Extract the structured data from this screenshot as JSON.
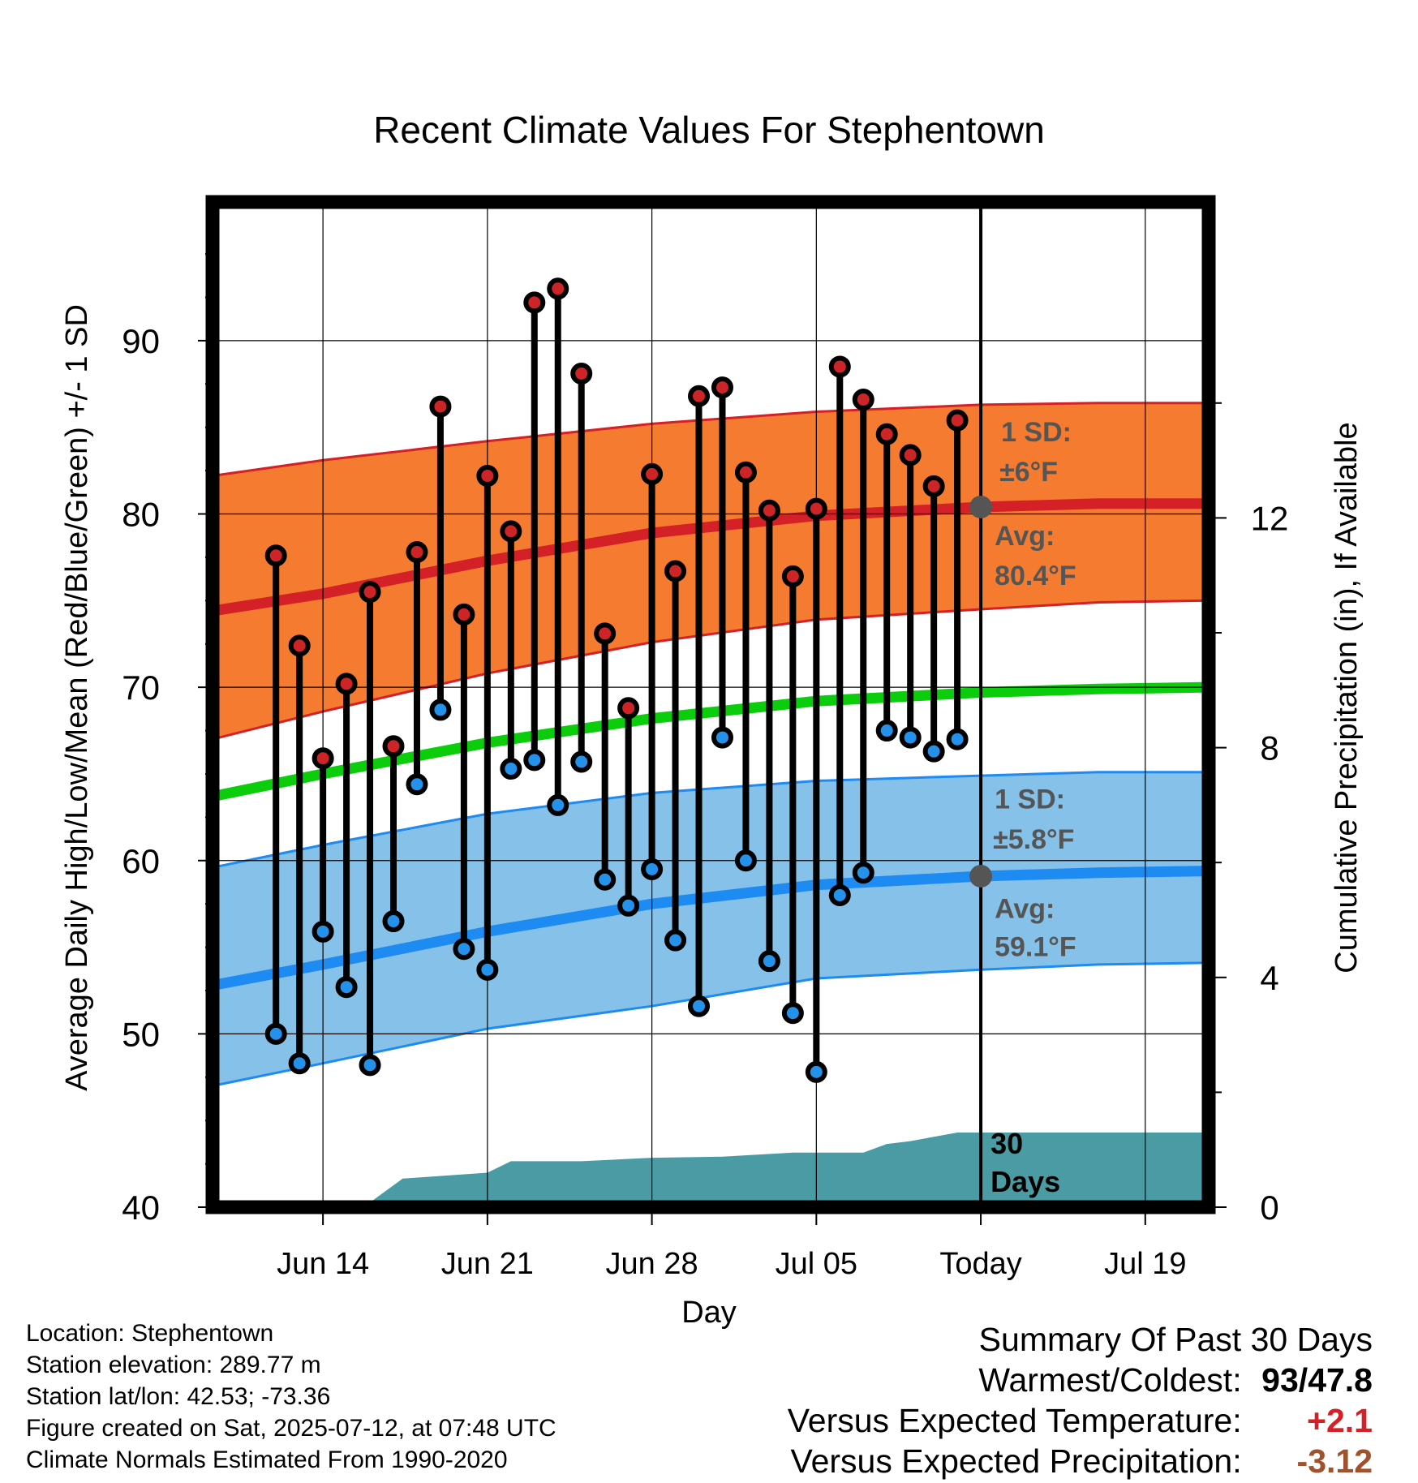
{
  "chart_data": {
    "type": "range-dot",
    "title": "Recent Climate Values For Stephentown",
    "xlabel": "Day",
    "ylabel": "Average Daily High/Low/Mean (Red/Blue/Green) +/- 1 SD",
    "y2label": "Cumulative Precipitation (in), If Available",
    "ylim": [
      40,
      98
    ],
    "yticks": [
      40,
      50,
      60,
      70,
      80,
      90
    ],
    "y2lim": [
      0,
      17.5
    ],
    "y2ticks": [
      0,
      4,
      8,
      12
    ],
    "xlim": [
      -32.7,
      9.7
    ],
    "xticks": [
      {
        "day": -28,
        "label": "Jun 14"
      },
      {
        "day": -21,
        "label": "Jun 21"
      },
      {
        "day": -14,
        "label": "Jun 28"
      },
      {
        "day": -7,
        "label": "Jul 05"
      },
      {
        "day": 0,
        "label": "Today"
      },
      {
        "day": 7,
        "label": "Jul 19"
      }
    ],
    "grid": true,
    "today_label": [
      "30",
      "Days"
    ],
    "daily": {
      "days": [
        -30,
        -29,
        -28,
        -27,
        -26,
        -25,
        -24,
        -23,
        -22,
        -21,
        -20,
        -19,
        -18,
        -17,
        -16,
        -15,
        -14,
        -13,
        -12,
        -11,
        -10,
        -9,
        -8,
        -7,
        -6,
        -5,
        -4,
        -3,
        -2,
        -1
      ],
      "highs": [
        77.6,
        72.4,
        65.9,
        70.2,
        75.5,
        66.6,
        77.8,
        86.2,
        74.2,
        82.2,
        79.0,
        92.2,
        93.0,
        88.1,
        73.1,
        68.8,
        82.3,
        76.7,
        86.8,
        87.3,
        82.4,
        80.2,
        76.4,
        80.3,
        88.5,
        86.6,
        84.6,
        83.4,
        81.6,
        85.4
      ],
      "lows": [
        50.0,
        48.3,
        55.9,
        52.7,
        48.2,
        56.5,
        64.4,
        68.7,
        54.9,
        53.7,
        65.3,
        65.8,
        63.2,
        65.7,
        58.9,
        57.4,
        59.5,
        55.4,
        51.6,
        67.1,
        60.0,
        54.2,
        51.2,
        47.8,
        58.0,
        59.3,
        67.5,
        67.1,
        66.3,
        67.0
      ]
    },
    "normals": {
      "days": [
        -32.7,
        -28,
        -21,
        -14,
        -7,
        0,
        5,
        9.7
      ],
      "high_mean": [
        74.4,
        75.4,
        77.3,
        78.9,
        79.9,
        80.4,
        80.6,
        80.6
      ],
      "high_upper": [
        82.2,
        83.1,
        84.2,
        85.2,
        85.9,
        86.3,
        86.4,
        86.4
      ],
      "high_lower": [
        67.0,
        68.6,
        70.8,
        72.6,
        73.9,
        74.5,
        74.9,
        75.0
      ],
      "mean": [
        63.7,
        65.0,
        66.8,
        68.2,
        69.2,
        69.7,
        69.9,
        70.0
      ],
      "low_mean": [
        52.8,
        54.0,
        55.9,
        57.5,
        58.6,
        59.1,
        59.3,
        59.4
      ],
      "low_upper": [
        59.6,
        60.9,
        62.7,
        63.9,
        64.6,
        64.9,
        65.1,
        65.1
      ],
      "low_lower": [
        47.0,
        48.3,
        50.3,
        51.6,
        53.2,
        53.7,
        54.0,
        54.1
      ]
    },
    "precip": {
      "days": [
        -32.7,
        -28.1,
        -28,
        -26,
        -24.6,
        -24.5,
        -21,
        -20,
        -17,
        -14,
        -11,
        -8,
        -7,
        -5,
        -4,
        -3,
        -1,
        0,
        9.7
      ],
      "values": [
        0,
        0,
        0.08,
        0.08,
        0.5,
        0.5,
        0.6,
        0.8,
        0.8,
        0.86,
        0.88,
        0.95,
        0.95,
        0.95,
        1.1,
        1.15,
        1.3,
        1.3,
        1.3
      ]
    },
    "annotations": {
      "high_sd": "1 SD:",
      "high_sd_value": "±6°F",
      "high_avg": "Avg:",
      "high_avg_value": "80.4°F",
      "low_sd": "1 SD:",
      "low_sd_value": "±5.8°F",
      "low_avg": "Avg:",
      "low_avg_value": "59.1°F"
    },
    "colors": {
      "high_band": "#f47b2f",
      "high_line": "#d32127",
      "low_band": "#85c1e8",
      "low_line": "#1d8bf2",
      "mean_line": "#0ccd0c",
      "precip": "#4a9ba4",
      "high_dot": "#cd2427",
      "low_dot": "#2491ea",
      "avg_marker": "#555555",
      "annotation_text": "#555555"
    }
  },
  "info": {
    "location": "Location: Stephentown",
    "elevation": "Station elevation: 289.77 m",
    "latlon": "Station lat/lon: 42.53; -73.36",
    "created": "Figure created on Sat, 2025-07-12, at 07:48 UTC",
    "normals": "Climate Normals Estimated From 1990-2020"
  },
  "summary": {
    "title": "Summary Of Past 30 Days",
    "warmest_label": "Warmest/Coldest:",
    "warmest_value": "93",
    "coldest_value": "47.8",
    "temp_label": "Versus Expected Temperature:",
    "temp_value": "+2.1",
    "precip_label": "Versus Expected Precipitation:",
    "precip_value": "-3.12",
    "temp_color": "#d32127",
    "precip_color": "#a0522d"
  }
}
